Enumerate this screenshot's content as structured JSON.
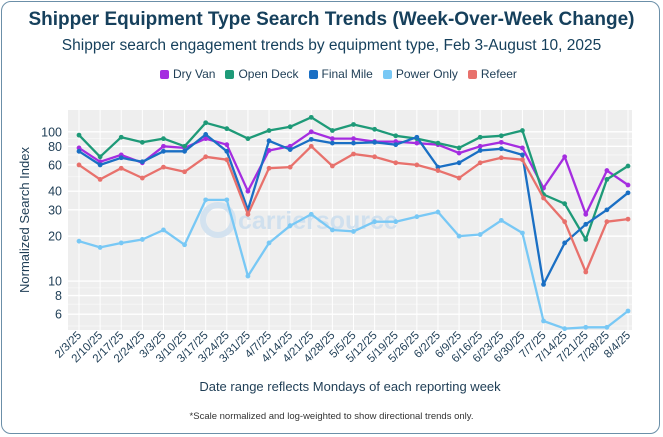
{
  "header": {
    "title": "Shipper Equipment Type Search Trends (Week-Over-Week Change)",
    "subtitle": "Shipper search engagement trends by equipment type, Feb 3-August 10, 2025"
  },
  "watermark": {
    "text": "carriersource"
  },
  "footnote": "*Scale normalized and log-weighted to show directional trends only.",
  "chart_data": {
    "type": "line",
    "title": "Shipper Equipment Type Search Trends (Week-Over-Week Change)",
    "subtitle": "Shipper search engagement trends by equipment type, Feb 3-August 10, 2025",
    "xlabel": "Date range reflects Mondays of each reporting week",
    "ylabel": "Normalized Search Index",
    "yscale": "log",
    "ylim": [
      4.7,
      140
    ],
    "yticks": [
      6,
      8,
      10,
      20,
      30,
      40,
      60,
      80,
      100
    ],
    "ytick_labels": [
      "6",
      "8",
      "10",
      "20",
      "30",
      "40",
      "60",
      "80",
      "100"
    ],
    "grid": true,
    "legend_position": "top",
    "x": [
      "2/3/25",
      "2/10/25",
      "2/17/25",
      "2/24/25",
      "3/3/25",
      "3/10/25",
      "3/17/25",
      "3/24/25",
      "3/31/25",
      "4/7/25",
      "4/14/25",
      "4/21/25",
      "4/28/25",
      "5/5/25",
      "5/12/25",
      "5/19/25",
      "5/26/25",
      "6/2/25",
      "6/9/25",
      "6/16/25",
      "6/23/25",
      "6/30/25",
      "7/7/25",
      "7/14/25",
      "7/21/25",
      "7/28/25",
      "8/4/25"
    ],
    "series": [
      {
        "name": "Dry Van",
        "color": "#a52de0",
        "values": [
          78,
          63,
          70,
          62,
          80,
          78,
          90,
          82,
          40,
          75,
          80,
          100,
          90,
          90,
          86,
          86,
          84,
          82,
          72,
          80,
          85,
          78,
          42,
          68,
          28,
          55,
          44
        ]
      },
      {
        "name": "Open Deck",
        "color": "#1e9a78",
        "values": [
          95,
          68,
          92,
          85,
          90,
          80,
          115,
          105,
          90,
          102,
          108,
          125,
          102,
          112,
          104,
          94,
          90,
          84,
          78,
          92,
          94,
          102,
          38,
          33,
          19,
          48,
          59
        ]
      },
      {
        "name": "Final Mile",
        "color": "#1a6fc4",
        "values": [
          74,
          60,
          67,
          63,
          74,
          74,
          96,
          74,
          30,
          87,
          76,
          89,
          84,
          84,
          85,
          82,
          92,
          58,
          62,
          75,
          77,
          70,
          9.5,
          18,
          24,
          30,
          39
        ]
      },
      {
        "name": "Power Only",
        "color": "#78c8f5",
        "values": [
          18.5,
          16.8,
          18,
          19,
          22,
          17.5,
          35,
          35,
          10.8,
          18,
          23.5,
          28,
          22,
          21.5,
          25,
          25,
          27,
          29,
          20,
          20.5,
          25.5,
          21,
          5.4,
          4.8,
          4.9,
          4.9,
          6.3
        ]
      },
      {
        "name": "Refeer",
        "color": "#e8716c",
        "values": [
          60,
          48,
          57,
          49,
          58,
          54,
          68,
          65,
          28,
          57,
          58,
          80,
          59,
          71,
          68,
          62,
          60,
          55,
          49,
          62,
          67,
          65,
          36,
          25,
          11.5,
          25,
          26
        ]
      }
    ]
  }
}
